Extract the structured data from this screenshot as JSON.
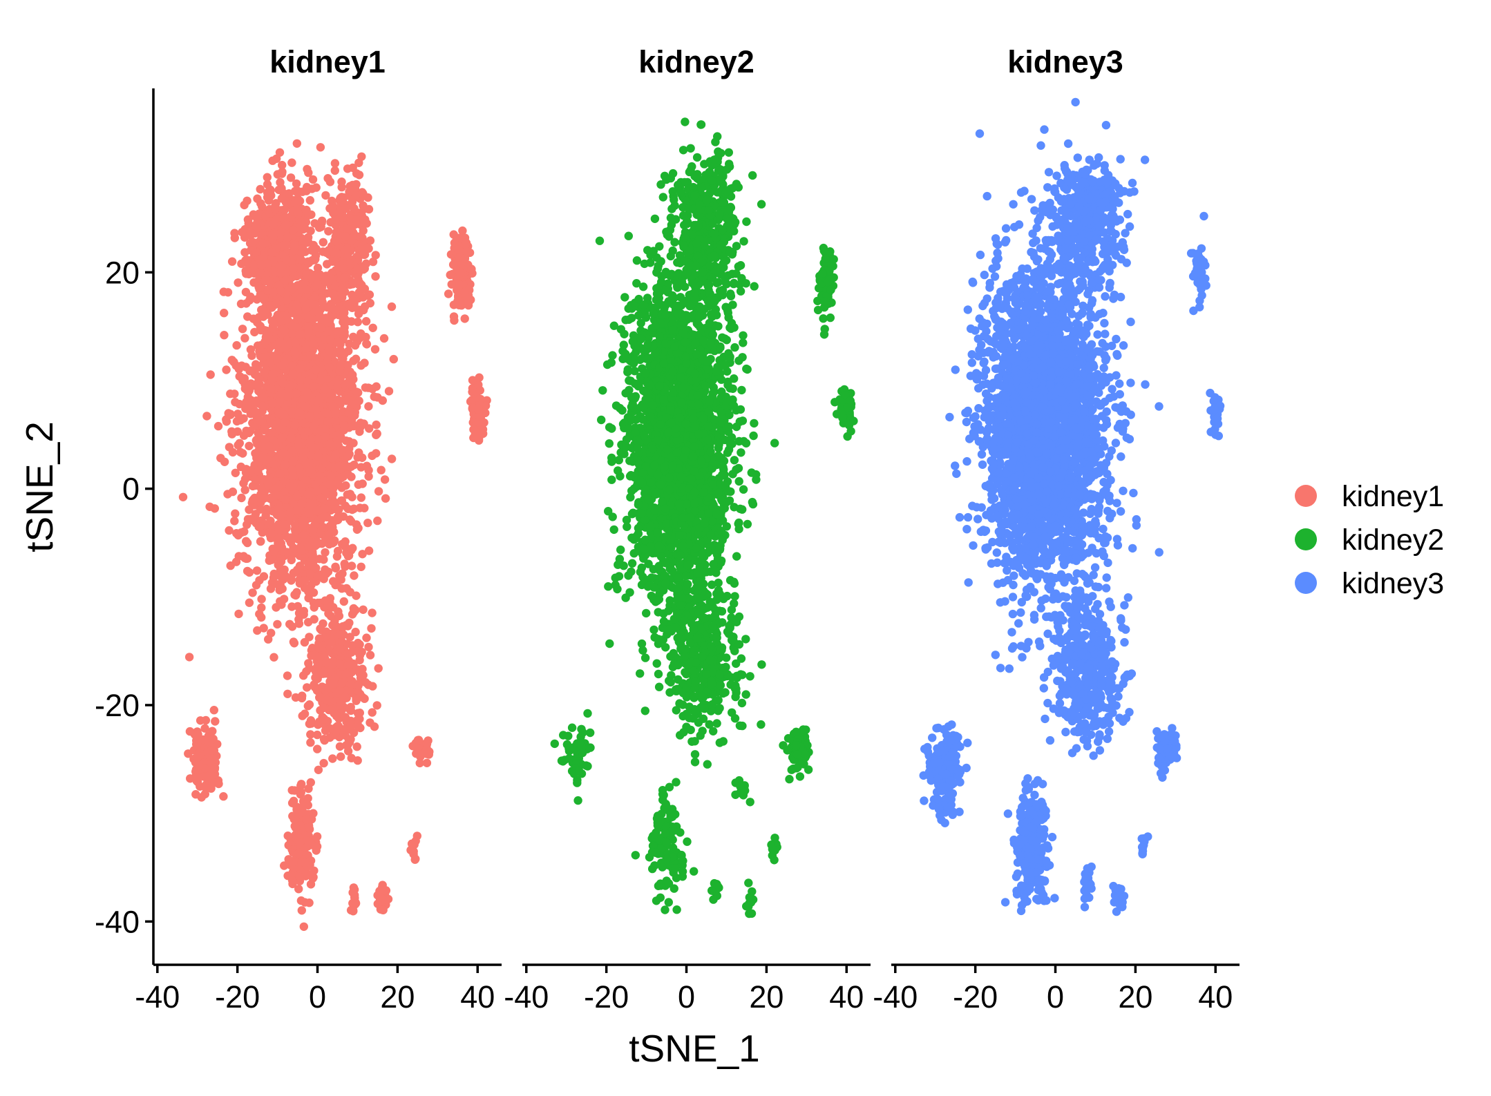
{
  "chart_data": {
    "type": "scatter",
    "xlabel": "tSNE_1",
    "ylabel": "tSNE_2",
    "xlim": [
      -41,
      46
    ],
    "ylim": [
      -44,
      37
    ],
    "x_ticks": [
      -40,
      -20,
      0,
      20,
      40
    ],
    "y_ticks": [
      20,
      0,
      -20,
      -40
    ],
    "x_tick_labels": [
      "-40",
      "-20",
      "0",
      "20",
      "40"
    ],
    "y_tick_labels": [
      "20",
      "0",
      "-20",
      "-40"
    ],
    "grid": false,
    "legend_position": "right",
    "facets": [
      "kidney1",
      "kidney2",
      "kidney3"
    ],
    "series": [
      {
        "name": "kidney1",
        "color": "#F8766D",
        "clusters": [
          {
            "cx": -4,
            "cy": 6,
            "sx": 13,
            "sy": 14,
            "n": 2600
          },
          {
            "cx": -10,
            "cy": 22,
            "sx": 7,
            "sy": 6,
            "n": 500
          },
          {
            "cx": 8,
            "cy": 22,
            "sx": 5,
            "sy": 6,
            "n": 300
          },
          {
            "cx": 5,
            "cy": -17,
            "sx": 7,
            "sy": 6,
            "n": 350
          },
          {
            "cx": 36,
            "cy": 20,
            "sx": 2.2,
            "sy": 3,
            "n": 150
          },
          {
            "cx": 40,
            "cy": 7,
            "sx": 1.8,
            "sy": 2,
            "n": 80
          },
          {
            "cx": -28,
            "cy": -25,
            "sx": 3.5,
            "sy": 3,
            "n": 120
          },
          {
            "cx": -4,
            "cy": -33,
            "sx": 2.8,
            "sy": 4,
            "n": 180
          },
          {
            "cx": 16,
            "cy": -38,
            "sx": 1,
            "sy": 1.2,
            "n": 25
          },
          {
            "cx": 9,
            "cy": -38,
            "sx": 1,
            "sy": 1.2,
            "n": 15
          },
          {
            "cx": 24,
            "cy": -33,
            "sx": 0.8,
            "sy": 1.2,
            "n": 10
          },
          {
            "cx": 26,
            "cy": -24,
            "sx": 2,
            "sy": 1.5,
            "n": 25
          }
        ]
      },
      {
        "name": "kidney2",
        "color": "#1DB22E",
        "clusters": [
          {
            "cx": -2,
            "cy": 4,
            "sx": 12,
            "sy": 14,
            "n": 2400
          },
          {
            "cx": 5,
            "cy": 24,
            "sx": 8,
            "sy": 6,
            "n": 400
          },
          {
            "cx": 4,
            "cy": -16,
            "sx": 8,
            "sy": 6,
            "n": 350
          },
          {
            "cx": 28,
            "cy": -24,
            "sx": 2.3,
            "sy": 1.6,
            "n": 110
          },
          {
            "cx": 35,
            "cy": 19,
            "sx": 2,
            "sy": 3,
            "n": 70
          },
          {
            "cx": 40,
            "cy": 7,
            "sx": 1.8,
            "sy": 2,
            "n": 50
          },
          {
            "cx": -28,
            "cy": -25,
            "sx": 3,
            "sy": 3,
            "n": 50
          },
          {
            "cx": -5,
            "cy": -33,
            "sx": 4,
            "sy": 4.5,
            "n": 110
          },
          {
            "cx": 16,
            "cy": -38,
            "sx": 1,
            "sy": 1.3,
            "n": 12
          },
          {
            "cx": 7,
            "cy": -37,
            "sx": 1,
            "sy": 1.3,
            "n": 10
          },
          {
            "cx": 22,
            "cy": -33,
            "sx": 0.8,
            "sy": 1.2,
            "n": 8
          },
          {
            "cx": 14,
            "cy": -28,
            "sx": 1.2,
            "sy": 0.8,
            "n": 15
          }
        ]
      },
      {
        "name": "kidney3",
        "color": "#5B8CFF",
        "clusters": [
          {
            "cx": -3,
            "cy": 6,
            "sx": 14,
            "sy": 14,
            "n": 3000
          },
          {
            "cx": 8,
            "cy": 25,
            "sx": 8,
            "sy": 5,
            "n": 400
          },
          {
            "cx": 8,
            "cy": -17,
            "sx": 8,
            "sy": 6,
            "n": 400
          },
          {
            "cx": 28,
            "cy": -24,
            "sx": 2.3,
            "sy": 1.6,
            "n": 90
          },
          {
            "cx": 36,
            "cy": 20,
            "sx": 1.8,
            "sy": 3,
            "n": 40
          },
          {
            "cx": 40,
            "cy": 7,
            "sx": 1.2,
            "sy": 1.6,
            "n": 25
          },
          {
            "cx": -28,
            "cy": -26,
            "sx": 3.5,
            "sy": 3.5,
            "n": 160
          },
          {
            "cx": -6,
            "cy": -33,
            "sx": 3.5,
            "sy": 4.5,
            "n": 280
          },
          {
            "cx": 16,
            "cy": -38,
            "sx": 1,
            "sy": 1.3,
            "n": 20
          },
          {
            "cx": 8,
            "cy": -37,
            "sx": 1,
            "sy": 1.3,
            "n": 20
          },
          {
            "cx": 22,
            "cy": -33,
            "sx": 0.8,
            "sy": 1.2,
            "n": 10
          }
        ]
      }
    ]
  }
}
